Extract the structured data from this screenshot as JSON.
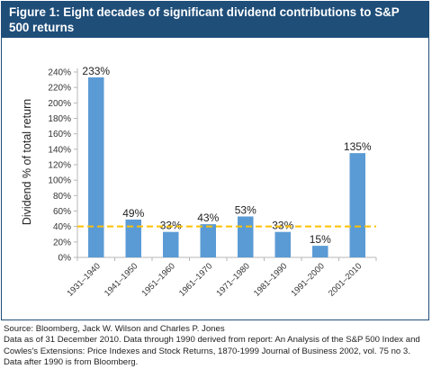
{
  "chart_data": {
    "type": "bar",
    "title": "Figure 1: Eight decades of significant dividend contributions to S&P 500 returns",
    "xlabel": "",
    "ylabel": "Dividend % of total return",
    "categories": [
      "1931–1940",
      "1941–1950",
      "1951–1960",
      "1961–1970",
      "1971–1980",
      "1981–1990",
      "1991–2000",
      "2001–2010"
    ],
    "values": [
      233,
      49,
      33,
      43,
      53,
      33,
      15,
      135
    ],
    "data_labels": [
      "233%",
      "49%",
      "33%",
      "43%",
      "53%",
      "33%",
      "15%",
      "135%"
    ],
    "ylim": [
      0,
      240
    ],
    "yticks": [
      0,
      20,
      40,
      60,
      80,
      100,
      120,
      140,
      160,
      180,
      200,
      220,
      240
    ],
    "ytick_labels": [
      "0%",
      "20%",
      "40%",
      "60%",
      "80%",
      "100%",
      "120%",
      "140%",
      "160%",
      "180%",
      "200%",
      "220%",
      "240%"
    ],
    "reference_line": 40,
    "grid": false,
    "legend": "none"
  },
  "colors": {
    "bar": "#5b9bd5",
    "title_bg": "#1f4e79",
    "reference_line": "#ffc000"
  },
  "source": {
    "line1": "Source: Bloomberg, Jack W. Wilson and Charles P. Jones",
    "line2": "Data as of 31 December 2010. Data through 1990 derived from report: An Analysis of the S&P 500 Index and Cowles's Extensions: Price Indexes and Stock Returns, 1870-1999 Journal of Business 2002, vol. 75 no 3. Data after 1990 is from Bloomberg."
  }
}
